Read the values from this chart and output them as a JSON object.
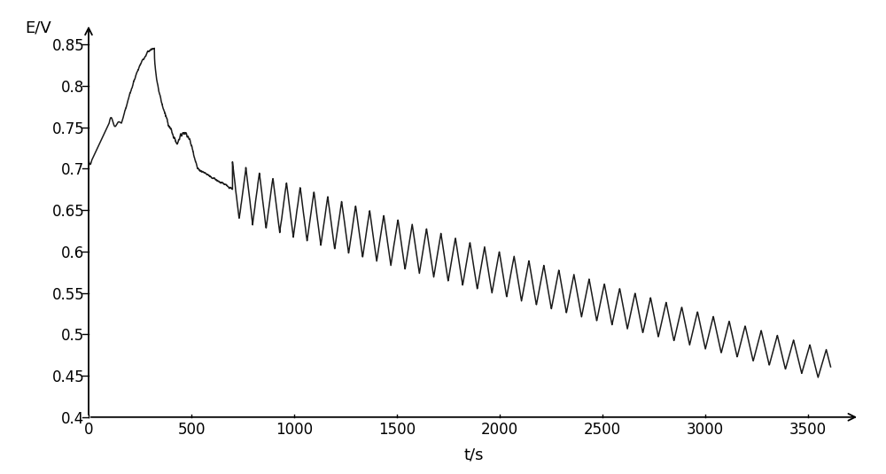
{
  "xlabel": "t/s",
  "ylabel": "E/V",
  "xlim": [
    0,
    3750
  ],
  "ylim": [
    0.4,
    0.875
  ],
  "xticks": [
    0,
    500,
    1000,
    1500,
    2000,
    2500,
    3000,
    3500
  ],
  "yticks": [
    0.4,
    0.45,
    0.5,
    0.55,
    0.6,
    0.65,
    0.7,
    0.75,
    0.8,
    0.85
  ],
  "ytick_labels": [
    "0.4",
    "0.45",
    "0.5",
    "0.55",
    "0.6",
    "0.65",
    "0.7",
    "0.75",
    "0.8",
    "0.85"
  ],
  "xtick_labels": [
    "0",
    "500",
    "1000",
    "1500",
    "2000",
    "2500",
    "3000",
    "3500"
  ],
  "line_color": "#1a1a1a",
  "line_width": 1.1,
  "bg_color": "#ffffff",
  "fig_size": [
    10.0,
    5.35
  ],
  "dpi": 100,
  "font_size": 12,
  "xlabel_fontsize": 13,
  "ylabel_fontsize": 13
}
